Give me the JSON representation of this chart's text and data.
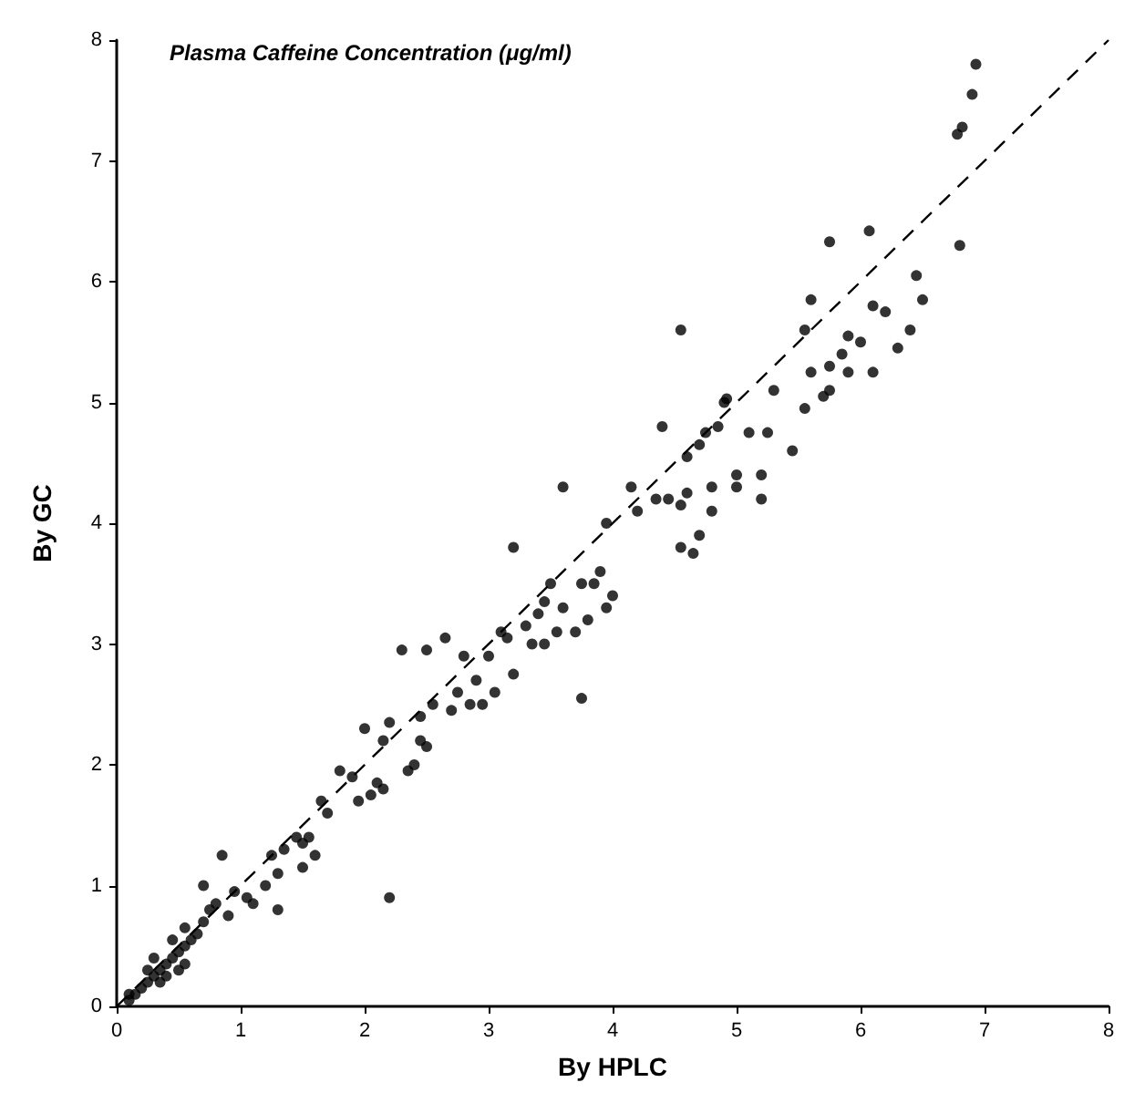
{
  "chart_data": {
    "type": "scatter",
    "title": "Plasma Caffeine Concentration (μg/ml)",
    "xlabel": "By HPLC",
    "ylabel": "By GC",
    "xlim": [
      0,
      8
    ],
    "ylim": [
      0,
      8
    ],
    "xticks": [
      0,
      1,
      2,
      3,
      4,
      5,
      6,
      7,
      8
    ],
    "yticks": [
      0,
      1,
      2,
      3,
      4,
      5,
      6,
      7,
      8
    ],
    "grid": false,
    "marker": "circle",
    "series": [
      {
        "color": "#000000",
        "x": [
          6.93,
          6.9,
          6.82,
          6.78,
          6.8,
          6.07,
          5.75,
          5.6,
          5.55,
          6.45,
          6.5,
          6.2,
          6.1,
          6.0,
          6.1,
          6.3,
          6.4,
          5.85,
          5.9,
          5.75,
          5.6,
          5.7,
          5.55,
          5.75,
          5.9,
          5.45,
          5.25,
          5.2,
          5.2,
          5.0,
          5.0,
          5.3,
          4.9,
          4.92,
          5.1,
          4.85,
          4.75,
          4.55,
          4.7,
          4.6,
          4.8,
          4.8,
          4.7,
          4.65,
          4.55,
          4.55,
          4.6,
          4.4,
          4.35,
          4.45,
          4.15,
          4.2,
          3.95,
          3.9,
          3.95,
          4.0,
          3.85,
          3.6,
          3.75,
          3.8,
          3.7,
          3.6,
          3.5,
          3.45,
          3.55,
          3.45,
          3.35,
          3.4,
          3.3,
          3.75,
          3.2,
          3.15,
          3.1,
          3.2,
          3.0,
          3.05,
          2.95,
          2.9,
          2.8,
          2.75,
          2.7,
          2.85,
          2.65,
          2.5,
          2.55,
          2.45,
          2.45,
          2.5,
          2.4,
          2.35,
          2.3,
          2.2,
          2.15,
          2.15,
          2.1,
          2.05,
          1.95,
          1.9,
          2.0,
          2.2,
          1.8,
          1.7,
          1.65,
          1.55,
          1.5,
          1.45,
          1.6,
          1.5,
          1.35,
          1.3,
          1.25,
          1.2,
          1.3,
          1.1,
          1.05,
          0.95,
          0.9,
          0.85,
          0.8,
          0.75,
          0.7,
          0.65,
          0.6,
          0.55,
          0.5,
          0.55,
          0.45,
          0.4,
          0.35,
          0.3,
          0.25,
          0.2,
          0.15,
          0.1,
          0.3,
          0.35,
          0.4,
          0.5,
          0.55,
          0.7,
          0.45,
          0.25,
          0.1
        ],
        "values": [
          7.8,
          7.55,
          7.28,
          7.22,
          6.3,
          6.42,
          6.33,
          5.85,
          5.6,
          6.05,
          5.85,
          5.75,
          5.8,
          5.5,
          5.25,
          5.45,
          5.6,
          5.4,
          5.55,
          5.3,
          5.25,
          5.05,
          4.95,
          5.1,
          5.25,
          4.6,
          4.75,
          4.4,
          4.2,
          4.4,
          4.3,
          5.1,
          5.0,
          5.03,
          4.75,
          4.8,
          4.75,
          5.6,
          4.65,
          4.55,
          4.3,
          4.1,
          3.9,
          3.75,
          3.8,
          4.15,
          4.25,
          4.8,
          4.2,
          4.2,
          4.3,
          4.1,
          4.0,
          3.6,
          3.3,
          3.4,
          3.5,
          4.3,
          3.5,
          3.2,
          3.1,
          3.3,
          3.5,
          3.35,
          3.1,
          3.0,
          3.0,
          3.25,
          3.15,
          2.55,
          3.8,
          3.05,
          3.1,
          2.75,
          2.9,
          2.6,
          2.5,
          2.7,
          2.9,
          2.6,
          2.45,
          2.5,
          3.05,
          2.95,
          2.5,
          2.4,
          2.2,
          2.15,
          2.0,
          1.95,
          2.95,
          2.35,
          2.2,
          1.8,
          1.85,
          1.75,
          1.7,
          1.9,
          2.3,
          0.9,
          1.95,
          1.6,
          1.7,
          1.4,
          1.35,
          1.4,
          1.25,
          1.15,
          1.3,
          1.1,
          1.25,
          1.0,
          0.8,
          0.85,
          0.9,
          0.95,
          0.75,
          1.25,
          0.85,
          0.8,
          0.7,
          0.6,
          0.55,
          0.5,
          0.45,
          0.35,
          0.4,
          0.35,
          0.3,
          0.25,
          0.2,
          0.15,
          0.1,
          0.05,
          0.4,
          0.2,
          0.25,
          0.3,
          0.65,
          1.0,
          0.55,
          0.3,
          0.1
        ]
      },
      {
        "type": "line",
        "color": "#000000",
        "line_style": "dashed",
        "marker": "none",
        "x": [
          0,
          8
        ],
        "values": [
          0,
          8
        ]
      }
    ]
  }
}
